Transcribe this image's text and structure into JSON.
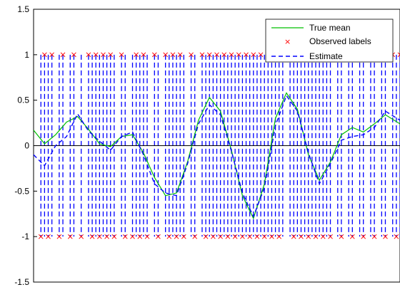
{
  "chart_data": {
    "type": "line",
    "title": "",
    "xlabel": "",
    "ylabel": "",
    "xlim": [
      0,
      100
    ],
    "ylim": [
      -1.5,
      1.5
    ],
    "yticks": [
      "1.5",
      "1",
      "0.5",
      "0",
      "-0.5",
      "-1",
      "-1.5"
    ],
    "grid": false,
    "legend_location": "top-right",
    "zero_line": 0,
    "series": [
      {
        "name": "True mean",
        "style": "solid",
        "color": "#00c000",
        "x": [
          0,
          3,
          6,
          9,
          12,
          15,
          18,
          21,
          24,
          27,
          30,
          33,
          36,
          39,
          42,
          45,
          48,
          51,
          54,
          57,
          60,
          63,
          66,
          69,
          72,
          75,
          78,
          81,
          84,
          87,
          90,
          93,
          96,
          100
        ],
        "y": [
          0.17,
          0.02,
          0.12,
          0.26,
          0.32,
          0.18,
          0.02,
          -0.01,
          0.1,
          0.12,
          -0.08,
          -0.35,
          -0.55,
          -0.52,
          -0.18,
          0.28,
          0.53,
          0.38,
          -0.05,
          -0.55,
          -0.8,
          -0.42,
          0.3,
          0.58,
          0.4,
          -0.1,
          -0.38,
          -0.18,
          0.12,
          0.2,
          0.15,
          0.24,
          0.34,
          0.24
        ]
      },
      {
        "name": "Observed labels",
        "style": "x-markers",
        "color": "#ff0000",
        "x": [
          3,
          5,
          8,
          11,
          15,
          17,
          19,
          21,
          24,
          28,
          30,
          33,
          36,
          38,
          40,
          43,
          46,
          48,
          50,
          52,
          54,
          56,
          58,
          60,
          62,
          64,
          66,
          68,
          70,
          72,
          74,
          76,
          78,
          80,
          83,
          86,
          89,
          92,
          95,
          98,
          100,
          2,
          4,
          7,
          10,
          13,
          16,
          18,
          20,
          22,
          25,
          27,
          29,
          31,
          34,
          37,
          39,
          41,
          44,
          47,
          49,
          51,
          53,
          55,
          57,
          59,
          61,
          63,
          65,
          67,
          71,
          73,
          75,
          77,
          79,
          81,
          84,
          87,
          90,
          93,
          96,
          99
        ],
        "y": [
          1,
          1,
          1,
          1,
          1,
          1,
          1,
          1,
          1,
          1,
          1,
          1,
          1,
          1,
          1,
          1,
          1,
          1,
          1,
          1,
          1,
          1,
          1,
          1,
          1,
          1,
          1,
          1,
          1,
          1,
          1,
          1,
          1,
          1,
          1,
          1,
          1,
          1,
          1,
          1,
          1,
          -1,
          -1,
          -1,
          -1,
          -1,
          -1,
          -1,
          -1,
          -1,
          -1,
          -1,
          -1,
          -1,
          -1,
          -1,
          -1,
          -1,
          -1,
          -1,
          -1,
          -1,
          -1,
          -1,
          -1,
          -1,
          -1,
          -1,
          -1,
          -1,
          -1,
          -1,
          -1,
          -1,
          -1,
          -1,
          -1,
          -1,
          -1,
          -1,
          -1,
          -1
        ]
      },
      {
        "name": "Estimate",
        "style": "dashed",
        "color": "#0000ff",
        "x": [
          0,
          3,
          6,
          9,
          12,
          15,
          18,
          21,
          24,
          27,
          30,
          33,
          36,
          39,
          42,
          45,
          48,
          51,
          54,
          57,
          60,
          63,
          66,
          69,
          72,
          75,
          78,
          81,
          84,
          87,
          90,
          93,
          96,
          100
        ],
        "y": [
          -0.1,
          -0.22,
          0.0,
          0.1,
          0.35,
          0.16,
          0.05,
          -0.05,
          0.1,
          0.15,
          -0.1,
          -0.42,
          -0.52,
          -0.55,
          -0.2,
          0.24,
          0.45,
          0.34,
          -0.06,
          -0.52,
          -0.78,
          -0.46,
          0.22,
          0.55,
          0.38,
          -0.08,
          -0.42,
          -0.2,
          0.06,
          0.1,
          0.12,
          0.2,
          0.38,
          0.28
        ]
      }
    ]
  },
  "legend": {
    "items": [
      {
        "label": "True mean"
      },
      {
        "label": "Observed labels"
      },
      {
        "label": "Estimate"
      }
    ]
  }
}
